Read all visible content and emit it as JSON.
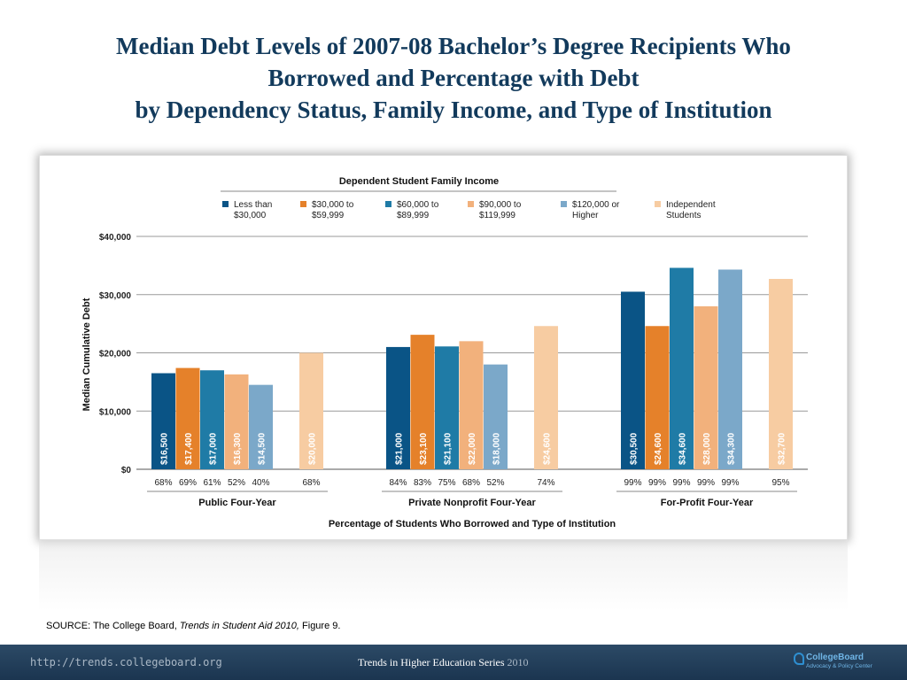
{
  "slide": {
    "title_lines": [
      "Median Debt Levels of 2007-08 Bachelor’s Degree Recipients Who",
      "Borrowed and Percentage with Debt",
      "by Dependency Status, Family Income, and Type of Institution"
    ],
    "source_prefix": "SOURCE: The College Board, ",
    "source_italic": "Trends in Student Aid 2010,",
    "source_suffix": " Figure 9.",
    "footer_url": "http://trends.collegeboard.org",
    "footer_series": "Trends in Higher Education Series",
    "footer_year": "2010",
    "logo_name": "CollegeBoard",
    "logo_sub": "Advocacy & Policy Center"
  },
  "colors": {
    "title": "#123a5c",
    "footer": "#1f3a56",
    "series": [
      "#0a5486",
      "#e5812a",
      "#1f7ba6",
      "#f2b17c",
      "#7ba8c9",
      "#f7cca2"
    ]
  },
  "chart_data": {
    "type": "bar",
    "legend_title": "Dependent Student Family Income",
    "ylabel": "Median Cumulative Debt",
    "xlabel": "Percentage of Students Who Borrowed and Type of Institution",
    "ylim": [
      0,
      40000
    ],
    "yticks": [
      "$0",
      "$10,000",
      "$20,000",
      "$30,000",
      "$40,000"
    ],
    "grid": true,
    "legend_position": "top",
    "categories": [
      "Public Four-Year",
      "Private Nonprofit Four-Year",
      "For-Profit Four-Year"
    ],
    "series": [
      {
        "name": "Less than $30,000",
        "name_lines": [
          "Less than",
          "$30,000"
        ],
        "values": [
          16500,
          21000,
          30500
        ],
        "labels": [
          "$16,500",
          "$21,000",
          "$30,500"
        ],
        "percents": [
          "68%",
          "84%",
          "99%"
        ]
      },
      {
        "name": "$30,000 to $59,999",
        "name_lines": [
          "$30,000 to",
          "$59,999"
        ],
        "values": [
          17400,
          23100,
          24600
        ],
        "labels": [
          "$17,400",
          "$23,100",
          "$24,600"
        ],
        "percents": [
          "69%",
          "83%",
          "99%"
        ]
      },
      {
        "name": "$60,000 to $89,999",
        "name_lines": [
          "$60,000 to",
          "$89,999"
        ],
        "values": [
          17000,
          21100,
          34600
        ],
        "labels": [
          "$17,000",
          "$21,100",
          "$34,600"
        ],
        "percents": [
          "61%",
          "75%",
          "99%"
        ]
      },
      {
        "name": "$90,000 to $119,999",
        "name_lines": [
          "$90,000 to",
          "$119,999"
        ],
        "values": [
          16300,
          22000,
          28000
        ],
        "labels": [
          "$16,300",
          "$22,000",
          "$28,000"
        ],
        "percents": [
          "52%",
          "68%",
          "99%"
        ]
      },
      {
        "name": "$120,000 or Higher",
        "name_lines": [
          "$120,000 or",
          "Higher"
        ],
        "values": [
          14500,
          18000,
          34300
        ],
        "labels": [
          "$14,500",
          "$18,000",
          "$34,300"
        ],
        "percents": [
          "40%",
          "52%",
          "99%"
        ]
      },
      {
        "name": "Independent Students",
        "name_lines": [
          "Independent",
          "Students"
        ],
        "values": [
          20000,
          24600,
          32700
        ],
        "labels": [
          "$20,000",
          "$24,600",
          "$32,700"
        ],
        "percents": [
          "68%",
          "74%",
          "95%"
        ]
      }
    ]
  }
}
